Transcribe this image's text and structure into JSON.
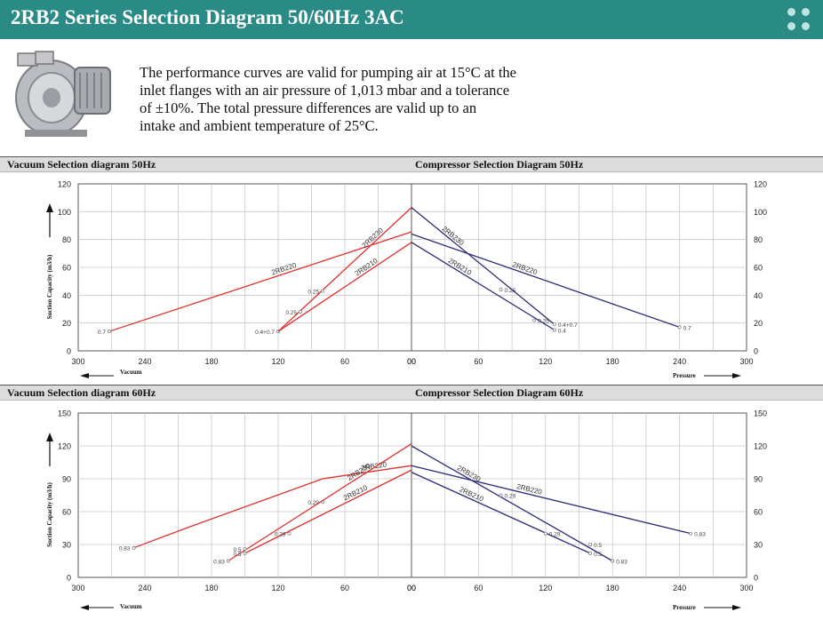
{
  "header": {
    "title": "2RB2 Series Selection Diagram 50/60Hz 3AC"
  },
  "intro": {
    "lines": [
      "The performance curves are valid for pumping air at 15°C at the",
      "inlet flanges with an air pressure of 1,013 mbar and a tolerance",
      "of ±10%. The total pressure differences are valid up to an",
      "intake and ambient temperature of 25°C."
    ]
  },
  "colors": {
    "vacuum": "#e0312d",
    "compressor": "#2b2c78",
    "header": "#2a8a86"
  },
  "chart_data": [
    {
      "type": "line",
      "title": "Vacuum Selection diagram 50Hz",
      "xlabel": "Vacuum",
      "ylabel": "Suction Capacity (m3/h)",
      "xlim": [
        300,
        0
      ],
      "ylim": [
        0,
        120
      ],
      "xticks": [
        "300",
        "240",
        "180",
        "120",
        "60",
        "00"
      ],
      "yticks": [
        "0",
        "20",
        "40",
        "60",
        "80",
        "100",
        "120"
      ],
      "grid": true,
      "series": [
        {
          "name": "2RB220",
          "points": [
            [
              0,
              85.5
            ],
            [
              272,
              14
            ]
          ],
          "labels": [
            {
              "x": 272,
              "y": 14,
              "text": "0.7"
            }
          ]
        },
        {
          "name": "2RB230",
          "points": [
            [
              0,
              103
            ],
            [
              120,
              14
            ]
          ],
          "labels": [
            {
              "x": 120,
              "y": 14,
              "text": "0.4+0.7"
            },
            {
              "x": 100,
              "y": 28,
              "text": "0.25"
            }
          ]
        },
        {
          "name": "2RB210",
          "points": [
            [
              0,
              78
            ],
            [
              120,
              14
            ]
          ],
          "labels": [
            {
              "x": 80,
              "y": 43,
              "text": "0.25"
            }
          ]
        }
      ]
    },
    {
      "type": "line",
      "title": "Compressor Selection Diagram 50Hz",
      "xlabel": "Pressure",
      "ylabel": "",
      "xlim": [
        0,
        300
      ],
      "ylim": [
        0,
        120
      ],
      "xticks": [
        "00",
        "60",
        "120",
        "180",
        "240",
        "300"
      ],
      "yticks": [
        "0",
        "20",
        "40",
        "60",
        "80",
        "100",
        "120"
      ],
      "grid": true,
      "series": [
        {
          "name": "2RB220",
          "points": [
            [
              0,
              84
            ],
            [
              240,
              17
            ]
          ],
          "labels": [
            {
              "x": 240,
              "y": 17,
              "text": "0.7"
            }
          ]
        },
        {
          "name": "2RB230",
          "points": [
            [
              0,
              103
            ],
            [
              128,
              19
            ]
          ],
          "labels": [
            {
              "x": 128,
              "y": 19,
              "text": "0.4+0.7"
            },
            {
              "x": 110,
              "y": 22,
              "text": "0.25"
            }
          ]
        },
        {
          "name": "2RB210",
          "points": [
            [
              0,
              78
            ],
            [
              128,
              15
            ]
          ],
          "labels": [
            {
              "x": 80,
              "y": 44,
              "text": "0.25"
            },
            {
              "x": 128,
              "y": 15,
              "text": "0.4"
            }
          ]
        }
      ]
    },
    {
      "type": "line",
      "title": "Vacuum Selection diagram 60Hz",
      "xlabel": "Vacuum",
      "ylabel": "Suction Capacity (m3/h)",
      "xlim": [
        300,
        0
      ],
      "ylim": [
        0,
        150
      ],
      "xticks": [
        "300",
        "240",
        "180",
        "120",
        "60",
        "00"
      ],
      "yticks": [
        "0",
        "30",
        "60",
        "90",
        "120",
        "150"
      ],
      "grid": true,
      "series": [
        {
          "name": "2RB220",
          "points": [
            [
              0,
              102
            ],
            [
              80,
              90
            ],
            [
              200,
              46
            ],
            [
              250,
              27
            ]
          ],
          "labels": [
            {
              "x": 250,
              "y": 27,
              "text": "0.83"
            },
            {
              "x": 80,
              "y": 69,
              "text": "0.29"
            }
          ]
        },
        {
          "name": "2RB230",
          "points": [
            [
              0,
              122
            ],
            [
              165,
              15
            ]
          ],
          "labels": [
            {
              "x": 165,
              "y": 15,
              "text": "0.83"
            },
            {
              "x": 150,
              "y": 26,
              "text": "0.5"
            }
          ]
        },
        {
          "name": "2RB210",
          "points": [
            [
              0,
              98
            ],
            [
              150,
              22
            ]
          ],
          "labels": [
            {
              "x": 110,
              "y": 40,
              "text": "0.29"
            },
            {
              "x": 150,
              "y": 22,
              "text": "0.5"
            }
          ]
        }
      ]
    },
    {
      "type": "line",
      "title": "Compressor Selection Diagram 60Hz",
      "xlabel": "Pressure",
      "ylabel": "",
      "xlim": [
        0,
        300
      ],
      "ylim": [
        0,
        150
      ],
      "xticks": [
        "00",
        "60",
        "120",
        "180",
        "240",
        "300"
      ],
      "yticks": [
        "0",
        "30",
        "60",
        "90",
        "120",
        "150"
      ],
      "grid": true,
      "series": [
        {
          "name": "2RB220",
          "points": [
            [
              0,
              102
            ],
            [
              250,
              40
            ]
          ],
          "labels": [
            {
              "x": 250,
              "y": 40,
              "text": "0.83"
            }
          ]
        },
        {
          "name": "2RB230",
          "points": [
            [
              0,
              120
            ],
            [
              180,
              15
            ]
          ],
          "labels": [
            {
              "x": 180,
              "y": 15,
              "text": "0.83"
            },
            {
              "x": 80,
              "y": 75,
              "text": "0.29"
            },
            {
              "x": 160,
              "y": 30,
              "text": "0.5"
            }
          ]
        },
        {
          "name": "2RB210",
          "points": [
            [
              0,
              96
            ],
            [
              160,
              22
            ]
          ],
          "labels": [
            {
              "x": 120,
              "y": 40,
              "text": "0.29"
            },
            {
              "x": 160,
              "y": 22,
              "text": "0.5"
            }
          ]
        }
      ]
    }
  ]
}
